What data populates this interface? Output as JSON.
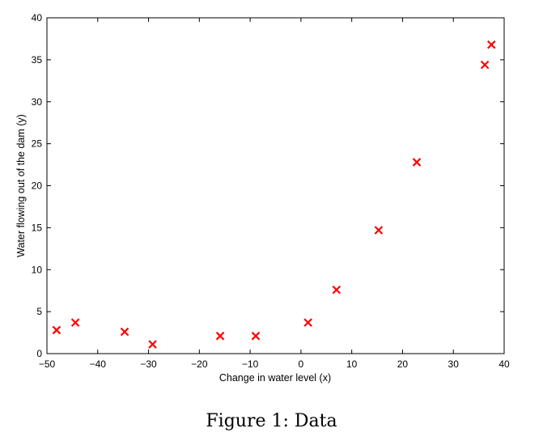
{
  "chart_data": {
    "type": "scatter",
    "title": "",
    "xlabel": "Change in water level (x)",
    "ylabel": "Water flowing out of the dam (y)",
    "xlim": [
      -50,
      40
    ],
    "ylim": [
      0,
      40
    ],
    "xticks": [
      -50,
      -40,
      -30,
      -20,
      -10,
      0,
      10,
      20,
      30,
      40
    ],
    "yticks": [
      0,
      5,
      10,
      15,
      20,
      25,
      30,
      35,
      40
    ],
    "xtick_labels": [
      "−50",
      "−40",
      "−30",
      "−20",
      "−10",
      "0",
      "10",
      "20",
      "30",
      "40"
    ],
    "ytick_labels": [
      "0",
      "5",
      "10",
      "15",
      "20",
      "25",
      "30",
      "35",
      "40"
    ],
    "grid": false,
    "marker": "x",
    "marker_color": "#ff0000",
    "series": [
      {
        "x": [
          -48.1,
          -44.4,
          -34.7,
          -29.2,
          -15.9,
          -8.9,
          1.4,
          7.0,
          15.3,
          22.8,
          36.2,
          37.5
        ],
        "y": [
          2.8,
          3.7,
          2.6,
          1.1,
          2.1,
          2.1,
          3.7,
          7.6,
          14.7,
          22.8,
          34.4,
          36.8
        ]
      }
    ]
  },
  "caption": "Figure 1: Data"
}
